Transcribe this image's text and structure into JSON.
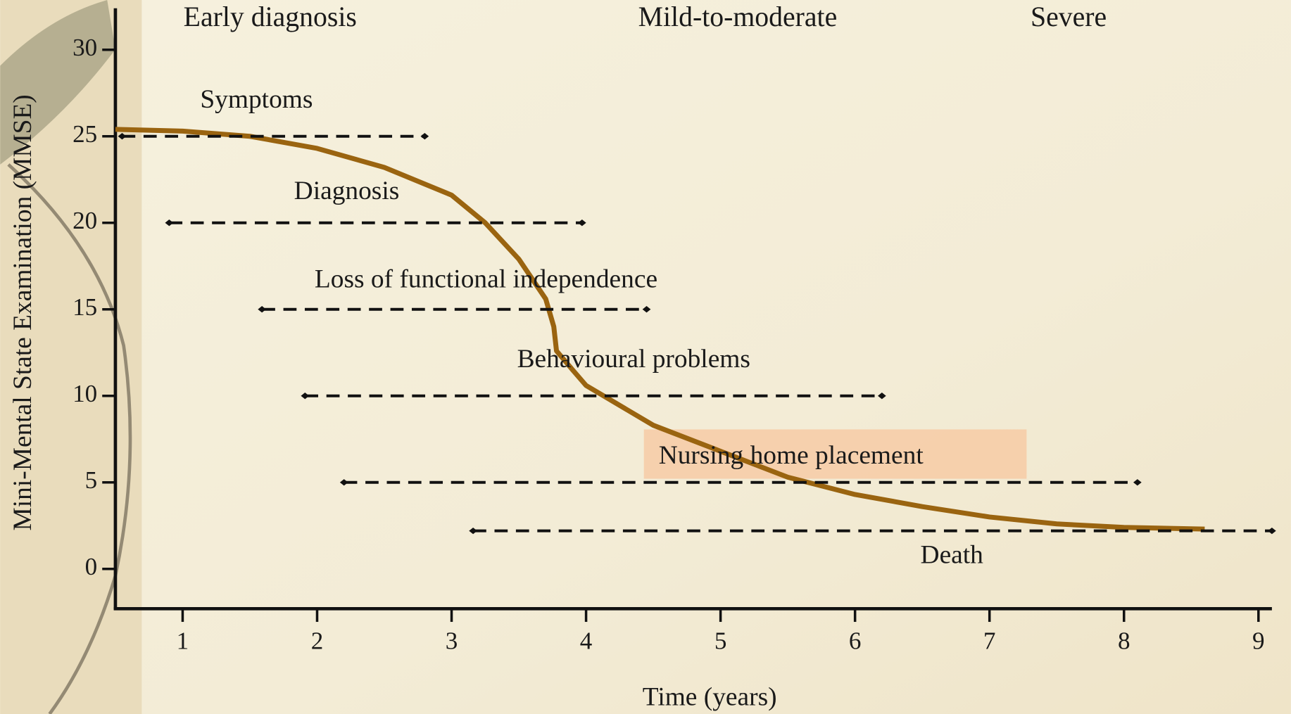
{
  "chart_data": {
    "type": "line",
    "xlabel": "Time (years)",
    "ylabel": "Mini-Mental State Examination (MMSE)",
    "phases": [
      "Early diagnosis",
      "Mild-to-moderate",
      "Severe"
    ],
    "xlim": [
      0.5,
      9.1
    ],
    "xticks": [
      1,
      2,
      3,
      4,
      5,
      6,
      7,
      8,
      9
    ],
    "ylim": [
      -2.3,
      32.4
    ],
    "yticks": [
      0,
      5,
      10,
      15,
      20,
      25,
      30
    ],
    "series": [
      {
        "color": "#9a6410",
        "x": [
          0.5,
          1,
          1.5,
          2,
          2.5,
          3,
          3.25,
          3.5,
          3.7,
          3.76,
          3.78,
          3.9,
          4,
          4.5,
          5,
          5.5,
          6,
          6.5,
          7,
          7.5,
          8,
          8.6
        ],
        "values": [
          25.4,
          25.3,
          25.0,
          24.3,
          23.2,
          21.6,
          20.0,
          17.9,
          15.6,
          14.0,
          12.6,
          11.5,
          10.6,
          8.3,
          6.8,
          5.3,
          4.3,
          3.6,
          3.0,
          2.6,
          2.4,
          2.3
        ]
      }
    ],
    "ranges": [
      {
        "label": "Symptoms",
        "value": 25,
        "x": [
          0.55,
          2.8
        ]
      },
      {
        "label": "Diagnosis",
        "value": 20,
        "x": [
          0.9,
          3.97
        ]
      },
      {
        "label": "Loss of  functional independence",
        "value": 15,
        "x": [
          1.59,
          4.45
        ]
      },
      {
        "label": "Behavioural problems",
        "value": 10,
        "x": [
          1.91,
          6.2
        ]
      },
      {
        "label": "Nursing home placement",
        "value": 5,
        "x": [
          2.2,
          8.1
        ]
      },
      {
        "label": "Death",
        "value": 2.2,
        "x": [
          3.16,
          9.1
        ]
      }
    ]
  }
}
